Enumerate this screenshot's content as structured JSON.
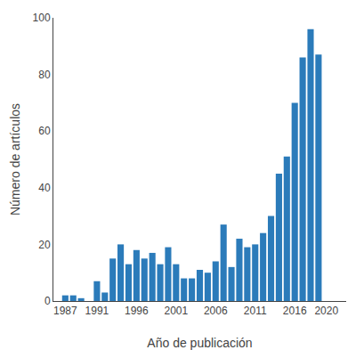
{
  "chart_data": {
    "type": "bar",
    "x": [
      1987,
      1988,
      1989,
      1990,
      1991,
      1992,
      1993,
      1994,
      1995,
      1996,
      1997,
      1998,
      1999,
      2000,
      2001,
      2002,
      2003,
      2004,
      2005,
      2006,
      2007,
      2008,
      2009,
      2010,
      2011,
      2012,
      2013,
      2014,
      2015,
      2016,
      2017,
      2018,
      2019,
      2020,
      2021
    ],
    "values": [
      2,
      2,
      1,
      0,
      7,
      3,
      15,
      20,
      13,
      18,
      15,
      17,
      13,
      19,
      13,
      8,
      8,
      11,
      10,
      14,
      27,
      12,
      22,
      19,
      20,
      24,
      30,
      45,
      51,
      70,
      86,
      96,
      87,
      0,
      0
    ],
    "color": "#2b7bba",
    "xlabel": "Año de publicación",
    "ylabel": "Número de artículos",
    "xlim": [
      1985.5,
      2022.5
    ],
    "xticks": [
      1987,
      1991,
      1996,
      2001,
      2006,
      2011,
      2016,
      2020
    ],
    "ylim": [
      0,
      100
    ],
    "yticks": [
      0,
      20,
      40,
      60,
      80,
      100
    ],
    "grid": false
  }
}
